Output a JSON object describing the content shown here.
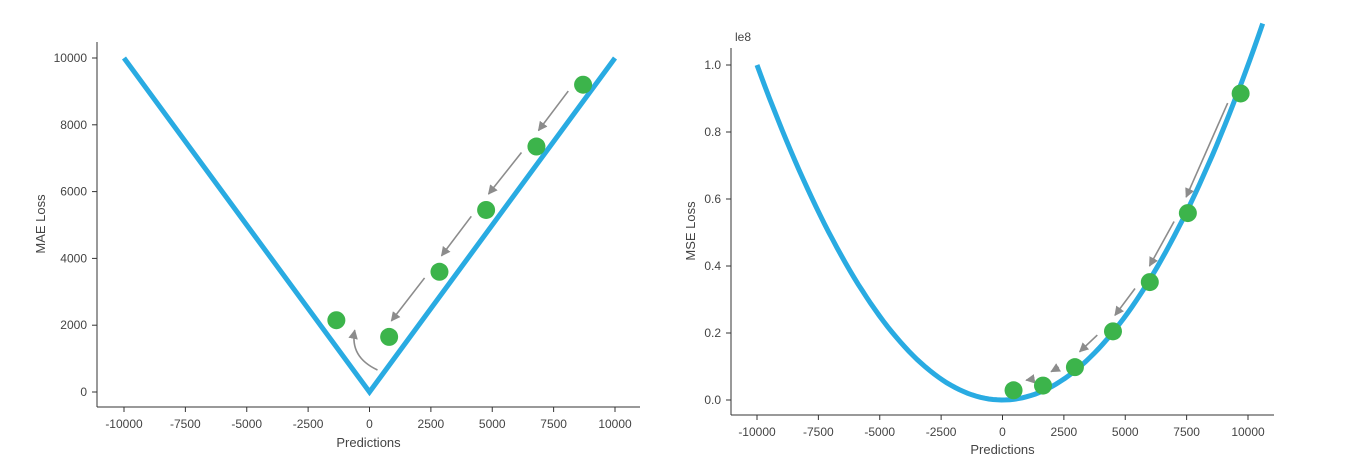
{
  "chart_data": [
    {
      "type": "line",
      "title": "",
      "xlabel": "Predictions",
      "ylabel": "MAE Loss",
      "xlim": [
        -11000,
        11000
      ],
      "ylim": [
        -400,
        10500
      ],
      "xticks": [
        -10000,
        -7500,
        -5000,
        -2500,
        0,
        2500,
        5000,
        7500,
        10000
      ],
      "yticks": [
        0,
        2000,
        4000,
        6000,
        8000,
        10000
      ],
      "curve": {
        "kind": "abs",
        "x_range": [
          -10000,
          10000
        ],
        "color": "#29abe2"
      },
      "points": [
        {
          "x": 8700,
          "y": 9200
        },
        {
          "x": 6800,
          "y": 7350
        },
        {
          "x": 4750,
          "y": 5450
        },
        {
          "x": 2850,
          "y": 3600
        },
        {
          "x": 800,
          "y": 1650
        },
        {
          "x": -1350,
          "y": 2150
        }
      ],
      "point_color": "#3cb44b",
      "arrow_color": "#8c8c8c",
      "grid": false
    },
    {
      "type": "line",
      "title": "",
      "xlabel": "Predictions",
      "ylabel": "MSE Loss",
      "axis_offset_label": "le8",
      "xlim": [
        -11000,
        11000
      ],
      "ylim": [
        -0.04,
        1.05
      ],
      "xticks": [
        -10000,
        -7500,
        -5000,
        -2500,
        0,
        2500,
        5000,
        7500,
        10000
      ],
      "yticks": [
        "0.0",
        "0.2",
        "0.4",
        "0.6",
        "0.8",
        "1.0"
      ],
      "curve": {
        "kind": "square",
        "x_range": [
          -10000,
          10600
        ],
        "color": "#29abe2"
      },
      "points": [
        {
          "x": 9700,
          "y": 0.915
        },
        {
          "x": 7550,
          "y": 0.558
        },
        {
          "x": 6000,
          "y": 0.352
        },
        {
          "x": 4500,
          "y": 0.205
        },
        {
          "x": 2950,
          "y": 0.098
        },
        {
          "x": 1650,
          "y": 0.043
        },
        {
          "x": 450,
          "y": 0.029
        }
      ],
      "point_color": "#3cb44b",
      "arrow_color": "#8c8c8c",
      "grid": false
    }
  ]
}
